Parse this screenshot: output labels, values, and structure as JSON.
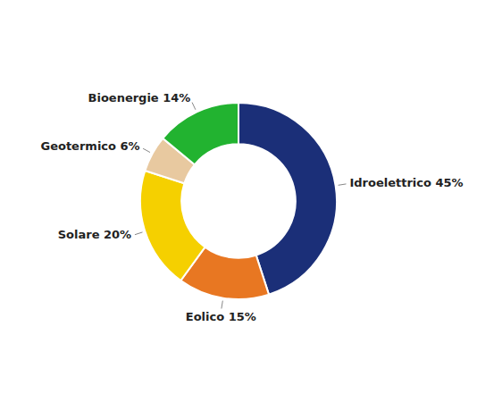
{
  "chart_data": {
    "type": "donut",
    "categories": [
      "Idroelettrico 45%",
      "Eolico 15%",
      "Solare 20%",
      "Geotermico 6%",
      "Bioenergie 14%"
    ],
    "values": [
      45,
      15,
      20,
      6,
      14
    ],
    "colors": [
      "#1b2f78",
      "#e87722",
      "#f5d000",
      "#e8c9a0",
      "#22b330"
    ]
  }
}
